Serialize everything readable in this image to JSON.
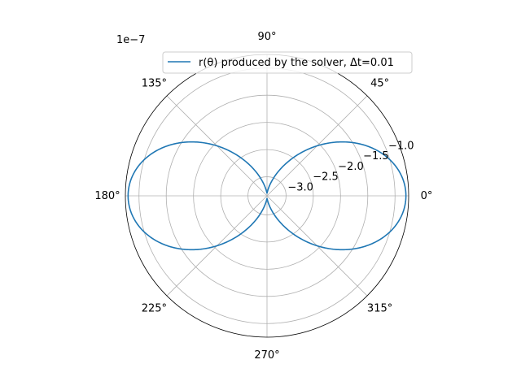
{
  "chart_data": {
    "type": "line",
    "projection": "polar",
    "offset_label": "1e−7",
    "theta_tick_labels": [
      "0°",
      "45°",
      "90°",
      "135°",
      "180°",
      "225°",
      "270°",
      "315°"
    ],
    "theta_tick_values_deg": [
      0,
      45,
      90,
      135,
      180,
      225,
      270,
      315
    ],
    "r_tick_labels": [
      "−3.0",
      "−2.5",
      "−2.0",
      "−1.5",
      "−1.0"
    ],
    "r_tick_values": [
      -3.0,
      -2.5,
      -2.0,
      -1.5,
      -1.0
    ],
    "r_label_angle_deg": 22.5,
    "rlim": [
      -3.35,
      -0.75
    ],
    "grid": true,
    "legend": {
      "location": "upper right",
      "entries": [
        "r(θ) produced by the solver, Δt=0.01"
      ]
    },
    "series": [
      {
        "name": "r(θ) produced by the solver, Δt=0.01",
        "color": "#1f77b4",
        "function": "r = -3.3 + 2.5*cos(theta)^2 (scaled by 1e-7)",
        "theta_range_deg": [
          0,
          360
        ]
      }
    ]
  }
}
